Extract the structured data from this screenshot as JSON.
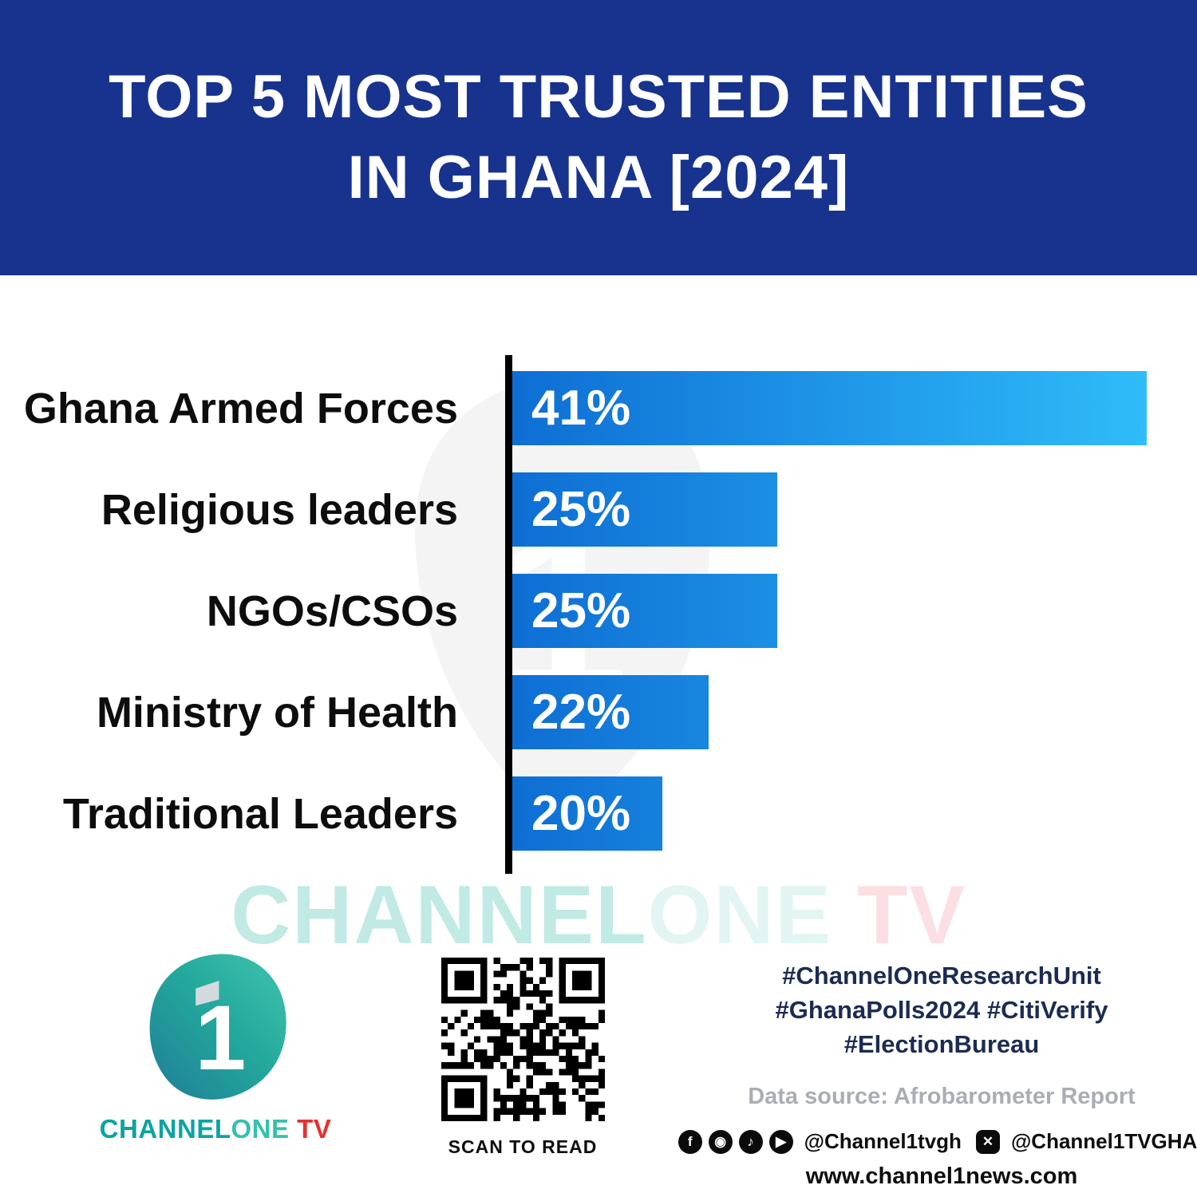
{
  "colors": {
    "header_bg": "#17338E",
    "bar_gradient_start": "#0E6ED4",
    "bar_gradient_end": "#2FBCF9",
    "axis": "#000000",
    "hashtag_text": "#1C2B52",
    "data_source_text": "#A9AEB5",
    "brand_teal": "#0EA3A0",
    "brand_red": "#E8302E"
  },
  "header": {
    "title_line1": "TOP 5 MOST TRUSTED ENTITIES",
    "title_line2": "IN GHANA [2024]"
  },
  "chart_data": {
    "type": "bar",
    "orientation": "horizontal",
    "title": "Top 5 Most Trusted Entities in Ghana [2024]",
    "categories": [
      "Ghana Armed Forces",
      "Religious leaders",
      "NGOs/CSOs",
      "Ministry of Health",
      "Traditional Leaders"
    ],
    "values": [
      41,
      25,
      25,
      22,
      20
    ],
    "value_labels": [
      "41%",
      "25%",
      "25%",
      "22%",
      "20%"
    ],
    "unit": "%",
    "xlabel": "",
    "ylabel": "",
    "xlim": [
      13.5,
      41
    ],
    "grid": false,
    "legend": false,
    "value_label_position": "inside-left",
    "bar_color": "blue gradient left-to-right"
  },
  "watermark": {
    "part_channel": "CHANNEL",
    "part_one": "ONE",
    "part_tv": "TV"
  },
  "footer": {
    "logo": {
      "digit": "1",
      "word_channel": "CHANNEL",
      "word_one": "ONE",
      "word_tv": " TV"
    },
    "qr_caption": "SCAN TO READ",
    "hashtags_line1": "#ChannelOneResearchUnit",
    "hashtags_line2": "#GhanaPolls2024 #CitiVerify",
    "hashtags_line3": "#ElectionBureau",
    "data_source": "Data source: Afrobarometer Report",
    "social_handle_1": "@Channel1tvgh",
    "social_handle_2": "@Channel1TVGHA",
    "website": "www.channel1news.com",
    "icons": {
      "facebook": "f",
      "instagram": "◉",
      "tiktok": "♪",
      "youtube": "▶",
      "x": "✕"
    }
  }
}
